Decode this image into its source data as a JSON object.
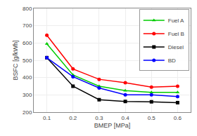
{
  "chart_data": {
    "type": "line",
    "xlabel": "BMEP [MPa]",
    "ylabel": "BSFC [g/kWh]",
    "x": [
      0.1,
      0.2,
      0.3,
      0.4,
      0.5,
      0.6
    ],
    "series": [
      {
        "name": "Fuel A",
        "color": "#00cc00",
        "marker": "triangle",
        "values": [
          595,
          415,
          350,
          325,
          315,
          315
        ]
      },
      {
        "name": "Fuel B",
        "color": "#ff0000",
        "marker": "circle",
        "values": [
          645,
          450,
          390,
          370,
          345,
          350
        ]
      },
      {
        "name": "Diesel",
        "color": "#000000",
        "marker": "square",
        "values": [
          515,
          350,
          272,
          262,
          260,
          255
        ]
      },
      {
        "name": "BD",
        "color": "#0000ff",
        "marker": "circle",
        "values": [
          515,
          405,
          340,
          300,
          300,
          290
        ]
      }
    ],
    "xlim": [
      0.05,
      0.65
    ],
    "xticks": [
      0.1,
      0.2,
      0.3,
      0.4,
      0.5,
      0.6
    ],
    "ylim": [
      200,
      800
    ],
    "yticks": [
      200,
      300,
      400,
      500,
      600,
      700,
      800
    ],
    "grid": true,
    "legend": "upper right"
  }
}
